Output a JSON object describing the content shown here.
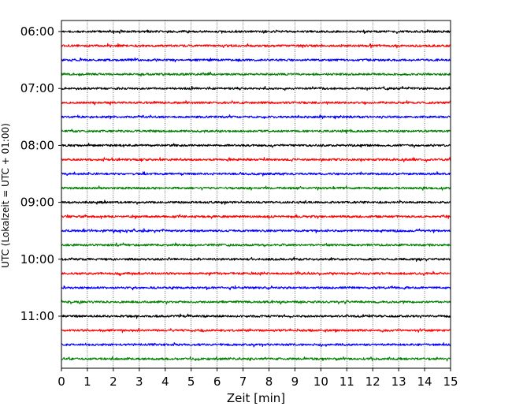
{
  "chart_data": {
    "type": "line",
    "title": "",
    "xlabel": "Zeit  [min]",
    "ylabel": "UTC (Lokalzeit = UTC + 01:00)",
    "xlim": [
      0,
      15
    ],
    "x_ticks": [
      "0",
      "1",
      "2",
      "3",
      "4",
      "5",
      "6",
      "7",
      "8",
      "9",
      "10",
      "11",
      "12",
      "13",
      "14",
      "15"
    ],
    "y_ticks": [
      "06:00",
      "07:00",
      "08:00",
      "09:00",
      "10:00",
      "11:00"
    ],
    "y_range": [
      "06:00",
      "11:45"
    ],
    "trace_interval_min": 15,
    "grid": {
      "vertical": true,
      "style": "dotted"
    },
    "legend": "none",
    "colors": [
      "#000000",
      "#ff0000",
      "#0000ff",
      "#008000"
    ],
    "traces": [
      "06:00",
      "06:15",
      "06:30",
      "06:45",
      "07:00",
      "07:15",
      "07:30",
      "07:45",
      "08:00",
      "08:15",
      "08:30",
      "08:45",
      "09:00",
      "09:15",
      "09:30",
      "09:45",
      "10:00",
      "10:15",
      "10:30",
      "10:45",
      "11:00",
      "11:15",
      "11:30",
      "11:45"
    ]
  }
}
